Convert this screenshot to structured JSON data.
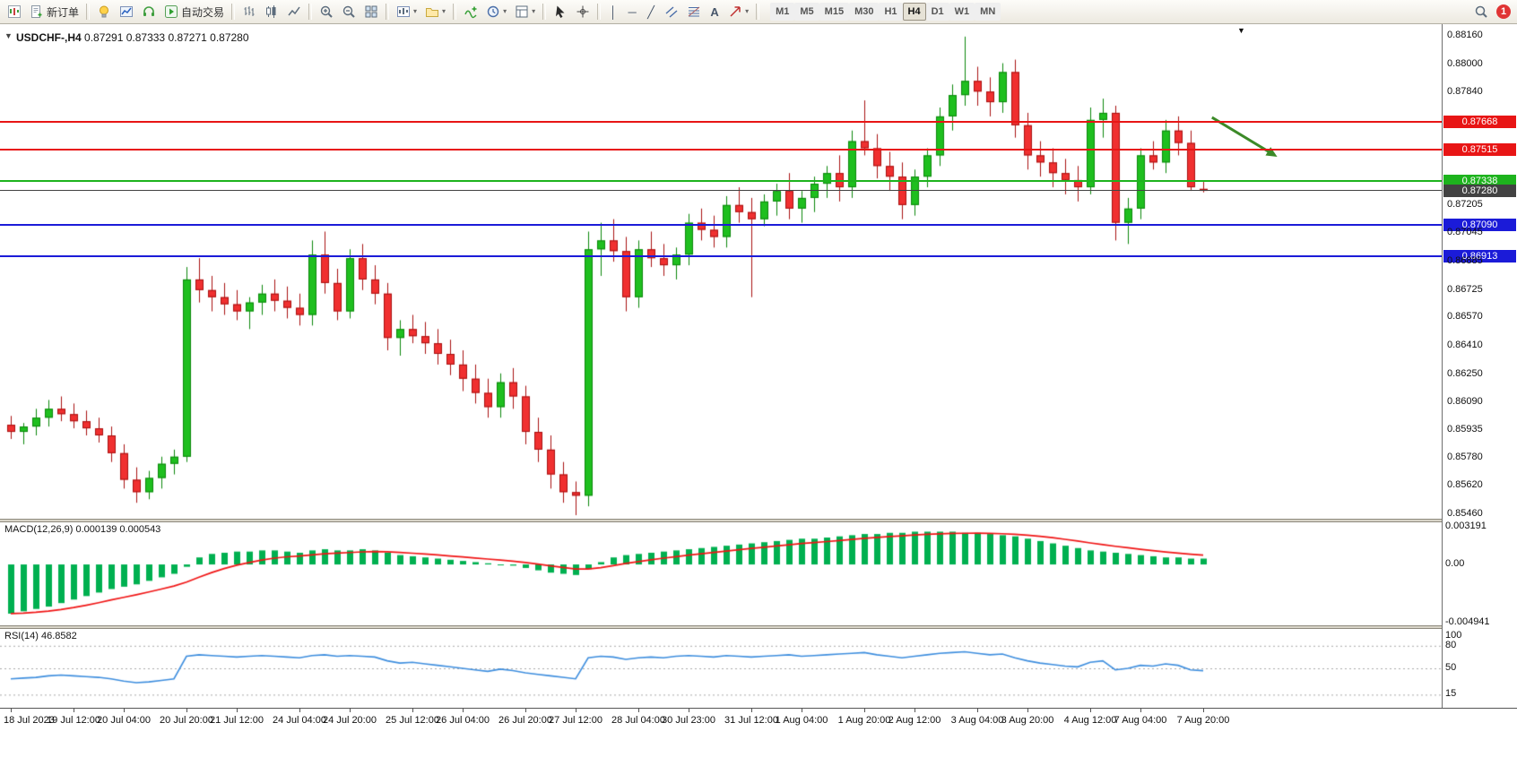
{
  "toolbar": {
    "new_order": "新订单",
    "auto_trading": "自动交易",
    "timeframes": [
      "M1",
      "M5",
      "M15",
      "M30",
      "H1",
      "H4",
      "D1",
      "W1",
      "MN"
    ],
    "active_timeframe": "H4",
    "notification_count": "1",
    "icons": {
      "caret": "▾",
      "vline": "│",
      "hline": "─",
      "trendline": "╱",
      "text_tool": "A",
      "crosshair": "+"
    }
  },
  "chart": {
    "title": "USDCHF-,H4",
    "ohlc_text": "0.87291 0.87333 0.87271 0.87280",
    "collapse_icon": "▼",
    "shift_marker": "▼"
  },
  "chart_data": {
    "type": "candlestick",
    "symbol": "USDCHF-",
    "timeframe": "H4",
    "price_range": {
      "min": 0.8543,
      "max": 0.8821
    },
    "candles": [
      [
        0.8596,
        0.8601,
        0.8588,
        0.8592
      ],
      [
        0.8592,
        0.8597,
        0.8585,
        0.8595
      ],
      [
        0.8595,
        0.8605,
        0.859,
        0.86
      ],
      [
        0.86,
        0.861,
        0.8595,
        0.8605
      ],
      [
        0.8605,
        0.8612,
        0.8598,
        0.8602
      ],
      [
        0.8602,
        0.8608,
        0.8594,
        0.8598
      ],
      [
        0.8598,
        0.8604,
        0.859,
        0.8594
      ],
      [
        0.8594,
        0.86,
        0.8586,
        0.859
      ],
      [
        0.859,
        0.8595,
        0.8575,
        0.858
      ],
      [
        0.858,
        0.8585,
        0.856,
        0.8565
      ],
      [
        0.8565,
        0.8572,
        0.8552,
        0.8558
      ],
      [
        0.8558,
        0.857,
        0.8554,
        0.8566
      ],
      [
        0.8566,
        0.8578,
        0.856,
        0.8574
      ],
      [
        0.8574,
        0.8582,
        0.8568,
        0.8578
      ],
      [
        0.8578,
        0.8685,
        0.8575,
        0.8678
      ],
      [
        0.8678,
        0.869,
        0.8665,
        0.8672
      ],
      [
        0.8672,
        0.868,
        0.866,
        0.8668
      ],
      [
        0.8668,
        0.8676,
        0.8658,
        0.8664
      ],
      [
        0.8664,
        0.8672,
        0.8655,
        0.866
      ],
      [
        0.866,
        0.8668,
        0.865,
        0.8665
      ],
      [
        0.8665,
        0.8675,
        0.8658,
        0.867
      ],
      [
        0.867,
        0.8678,
        0.866,
        0.8666
      ],
      [
        0.8666,
        0.8674,
        0.8656,
        0.8662
      ],
      [
        0.8662,
        0.867,
        0.8652,
        0.8658
      ],
      [
        0.8658,
        0.87,
        0.8652,
        0.8692
      ],
      [
        0.8692,
        0.8705,
        0.867,
        0.8676
      ],
      [
        0.8676,
        0.8684,
        0.8655,
        0.866
      ],
      [
        0.866,
        0.8695,
        0.8656,
        0.869
      ],
      [
        0.869,
        0.8698,
        0.8672,
        0.8678
      ],
      [
        0.8678,
        0.8686,
        0.8664,
        0.867
      ],
      [
        0.867,
        0.8676,
        0.8638,
        0.8645
      ],
      [
        0.8645,
        0.8655,
        0.8635,
        0.865
      ],
      [
        0.865,
        0.8658,
        0.8642,
        0.8646
      ],
      [
        0.8646,
        0.8654,
        0.8636,
        0.8642
      ],
      [
        0.8642,
        0.865,
        0.863,
        0.8636
      ],
      [
        0.8636,
        0.8644,
        0.8624,
        0.863
      ],
      [
        0.863,
        0.8638,
        0.8615,
        0.8622
      ],
      [
        0.8622,
        0.863,
        0.8608,
        0.8614
      ],
      [
        0.8614,
        0.8622,
        0.86,
        0.8606
      ],
      [
        0.8606,
        0.8625,
        0.86,
        0.862
      ],
      [
        0.862,
        0.8628,
        0.8605,
        0.8612
      ],
      [
        0.8612,
        0.8618,
        0.8585,
        0.8592
      ],
      [
        0.8592,
        0.86,
        0.8575,
        0.8582
      ],
      [
        0.8582,
        0.859,
        0.856,
        0.8568
      ],
      [
        0.8568,
        0.8575,
        0.8552,
        0.8558
      ],
      [
        0.8558,
        0.8564,
        0.8545,
        0.8556
      ],
      [
        0.8556,
        0.8705,
        0.855,
        0.8695
      ],
      [
        0.8695,
        0.871,
        0.868,
        0.87
      ],
      [
        0.87,
        0.8712,
        0.8688,
        0.8694
      ],
      [
        0.8694,
        0.8702,
        0.866,
        0.8668
      ],
      [
        0.8668,
        0.87,
        0.8662,
        0.8695
      ],
      [
        0.8695,
        0.8705,
        0.8685,
        0.869
      ],
      [
        0.869,
        0.8698,
        0.868,
        0.8686
      ],
      [
        0.8686,
        0.8696,
        0.8678,
        0.8692
      ],
      [
        0.8692,
        0.8715,
        0.8686,
        0.871
      ],
      [
        0.871,
        0.8718,
        0.87,
        0.8706
      ],
      [
        0.8706,
        0.8714,
        0.8696,
        0.8702
      ],
      [
        0.8702,
        0.8725,
        0.8696,
        0.872
      ],
      [
        0.872,
        0.873,
        0.871,
        0.8716
      ],
      [
        0.8716,
        0.8724,
        0.8668,
        0.8712
      ],
      [
        0.8712,
        0.8726,
        0.8708,
        0.8722
      ],
      [
        0.8722,
        0.8732,
        0.8714,
        0.8728
      ],
      [
        0.8728,
        0.8738,
        0.8712,
        0.8718
      ],
      [
        0.8718,
        0.8728,
        0.871,
        0.8724
      ],
      [
        0.8724,
        0.8736,
        0.8716,
        0.8732
      ],
      [
        0.8732,
        0.8742,
        0.8724,
        0.8738
      ],
      [
        0.8738,
        0.8748,
        0.8722,
        0.873
      ],
      [
        0.873,
        0.8762,
        0.8724,
        0.8756
      ],
      [
        0.8756,
        0.8779,
        0.8748,
        0.8752
      ],
      [
        0.8752,
        0.876,
        0.8735,
        0.8742
      ],
      [
        0.8742,
        0.875,
        0.8728,
        0.8736
      ],
      [
        0.8736,
        0.8744,
        0.8712,
        0.872
      ],
      [
        0.872,
        0.874,
        0.8714,
        0.8736
      ],
      [
        0.8736,
        0.8752,
        0.873,
        0.8748
      ],
      [
        0.8748,
        0.8775,
        0.8742,
        0.877
      ],
      [
        0.877,
        0.8788,
        0.8762,
        0.8782
      ],
      [
        0.8782,
        0.8815,
        0.8776,
        0.879
      ],
      [
        0.879,
        0.8798,
        0.8776,
        0.8784
      ],
      [
        0.8784,
        0.8792,
        0.877,
        0.8778
      ],
      [
        0.8778,
        0.88,
        0.8772,
        0.8795
      ],
      [
        0.8795,
        0.8802,
        0.8758,
        0.8765
      ],
      [
        0.8765,
        0.8772,
        0.874,
        0.8748
      ],
      [
        0.8748,
        0.8756,
        0.8736,
        0.8744
      ],
      [
        0.8744,
        0.8752,
        0.873,
        0.8738
      ],
      [
        0.8738,
        0.8746,
        0.8726,
        0.8734
      ],
      [
        0.8734,
        0.8742,
        0.8722,
        0.873
      ],
      [
        0.873,
        0.8775,
        0.8726,
        0.8768
      ],
      [
        0.8768,
        0.878,
        0.8758,
        0.8772
      ],
      [
        0.8772,
        0.8776,
        0.87,
        0.871
      ],
      [
        0.871,
        0.8724,
        0.8698,
        0.8718
      ],
      [
        0.8718,
        0.8752,
        0.8712,
        0.8748
      ],
      [
        0.8748,
        0.8756,
        0.874,
        0.8744
      ],
      [
        0.8744,
        0.8768,
        0.8738,
        0.8762
      ],
      [
        0.8762,
        0.877,
        0.8748,
        0.8755
      ],
      [
        0.8755,
        0.8762,
        0.8728,
        0.873
      ],
      [
        0.87291,
        0.87333,
        0.87271,
        0.8728
      ]
    ],
    "y_axis_ticks": [
      "0.88160",
      "0.88000",
      "0.87840",
      "0.87205",
      "0.87045",
      "0.86885",
      "0.86725",
      "0.86570",
      "0.86410",
      "0.86250",
      "0.86090",
      "0.85935",
      "0.85780",
      "0.85620",
      "0.85460"
    ],
    "levels": [
      {
        "price": "0.87668",
        "color": "#e81515",
        "kind": "resistance"
      },
      {
        "price": "0.87515",
        "color": "#e81515",
        "kind": "resistance"
      },
      {
        "price": "0.87338",
        "color": "#1db31d",
        "kind": "support"
      },
      {
        "price": "0.87280",
        "color": "#424242",
        "kind": "bid"
      },
      {
        "price": "0.87090",
        "color": "#1b1bd8",
        "kind": "support"
      },
      {
        "price": "0.86913",
        "color": "#1b1bd8",
        "kind": "support"
      }
    ],
    "time_labels": [
      "18 Jul 2023",
      "19 Jul 12:00",
      "20 Jul 04:00",
      "20 Jul 20:00",
      "21 Jul 12:00",
      "24 Jul 04:00",
      "24 Jul 20:00",
      "25 Jul 12:00",
      "26 Jul 04:00",
      "26 Jul 20:00",
      "27 Jul 12:00",
      "28 Jul 04:00",
      "30 Jul 23:00",
      "31 Jul 12:00",
      "1 Aug 04:00",
      "1 Aug 20:00",
      "2 Aug 12:00",
      "3 Aug 04:00",
      "3 Aug 20:00",
      "4 Aug 12:00",
      "7 Aug 04:00",
      "7 Aug 20:00"
    ],
    "macd": {
      "label": "MACD(12,26,9)",
      "values": "0.000139 0.000543",
      "range": {
        "min": -0.0052,
        "max": 0.0036
      },
      "axis_ticks": [
        [
          "0.003191",
          0.003191
        ],
        [
          "0.00",
          0
        ],
        [
          "-0.004941",
          -0.004941
        ]
      ],
      "hist": [
        -0.0042,
        -0.004,
        -0.0038,
        -0.0036,
        -0.0033,
        -0.003,
        -0.0027,
        -0.0024,
        -0.0021,
        -0.0019,
        -0.0017,
        -0.0014,
        -0.0011,
        -0.0008,
        -0.0002,
        0.0006,
        0.0009,
        0.001,
        0.0011,
        0.0011,
        0.0012,
        0.0012,
        0.0011,
        0.001,
        0.0012,
        0.0013,
        0.0012,
        0.0012,
        0.0013,
        0.0012,
        0.001,
        0.0008,
        0.0007,
        0.0006,
        0.0005,
        0.0004,
        0.0003,
        0.0002,
        0.0001,
        0.0,
        -0.0001,
        -0.0003,
        -0.0005,
        -0.0007,
        -0.0008,
        -0.0009,
        -0.0004,
        0.0002,
        0.0006,
        0.0008,
        0.0009,
        0.001,
        0.0011,
        0.0012,
        0.0013,
        0.0014,
        0.0015,
        0.0016,
        0.0017,
        0.0018,
        0.0019,
        0.002,
        0.0021,
        0.0022,
        0.0022,
        0.0023,
        0.0024,
        0.0025,
        0.0026,
        0.0026,
        0.0027,
        0.0027,
        0.0028,
        0.0028,
        0.0028,
        0.0028,
        0.0027,
        0.0027,
        0.0026,
        0.0025,
        0.0024,
        0.0022,
        0.002,
        0.0018,
        0.0016,
        0.0014,
        0.0012,
        0.0011,
        0.001,
        0.0009,
        0.0008,
        0.0007,
        0.0006,
        0.0006,
        0.0005,
        0.0005
      ]
    },
    "rsi": {
      "label": "RSI(14)",
      "value": "46.8582",
      "axis_ticks": [
        [
          "100",
          100
        ],
        [
          "80",
          80
        ],
        [
          "50",
          50
        ],
        [
          "15",
          15
        ]
      ],
      "levels": [
        80,
        50,
        15
      ],
      "values": [
        36,
        37,
        38,
        40,
        41,
        40,
        39,
        38,
        36,
        33,
        31,
        32,
        34,
        36,
        66,
        68,
        67,
        66,
        65,
        66,
        67,
        66,
        65,
        64,
        67,
        68,
        66,
        67,
        66,
        65,
        60,
        57,
        58,
        56,
        54,
        52,
        50,
        48,
        46,
        49,
        47,
        44,
        42,
        40,
        38,
        36,
        64,
        66,
        65,
        62,
        64,
        65,
        64,
        66,
        67,
        66,
        65,
        67,
        66,
        65,
        66,
        67,
        68,
        66,
        67,
        68,
        69,
        70,
        71,
        68,
        66,
        64,
        66,
        68,
        70,
        71,
        72,
        70,
        68,
        69,
        64,
        60,
        57,
        55,
        53,
        52,
        58,
        60,
        48,
        50,
        54,
        53,
        56,
        54,
        48,
        46.86
      ]
    },
    "annotations": [
      {
        "type": "arrow",
        "color": "#3c8a28",
        "from": {
          "bar": 95.7,
          "price": 0.87694
        },
        "to": {
          "bar": 100.9,
          "price": 0.87472
        }
      }
    ],
    "shift_marker_bar": 98,
    "colors": {
      "up": "#1fbf1f",
      "up_border": "#0b870b",
      "down": "#f03030",
      "down_border": "#a81010",
      "macd_hist": "#00b050",
      "macd_signal": "#f01515",
      "rsi_line": "#3e8ede"
    }
  }
}
